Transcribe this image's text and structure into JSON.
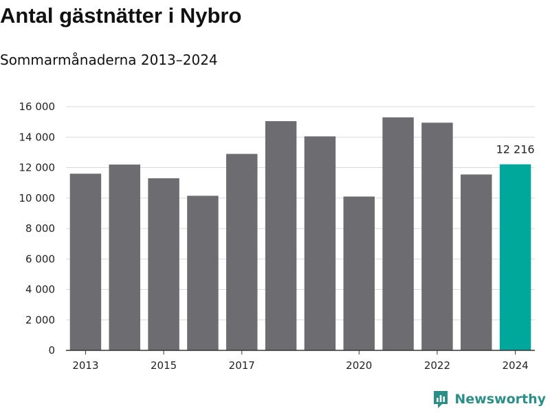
{
  "title": "Antal gästnätter i Nybro",
  "subtitle": "Sommarmånaderna 2013–2024",
  "brand": {
    "name": "Newsworthy",
    "color": "#2a8f86",
    "logo_icon": "newsworthy-logo"
  },
  "colors": {
    "bar": "#6d6c70",
    "highlight": "#00a89c",
    "grid": "#d9d9d9",
    "axis": "#333333",
    "text": "#222222"
  },
  "chart_data": {
    "type": "bar",
    "categories": [
      "2013",
      "2014",
      "2015",
      "2016",
      "2017",
      "2018",
      "2019",
      "2020",
      "2021",
      "2022",
      "2023",
      "2024"
    ],
    "values": [
      11600,
      12200,
      11300,
      10150,
      12900,
      15050,
      14050,
      10100,
      15300,
      14950,
      11550,
      12216
    ],
    "highlight_index": 11,
    "data_labels": [
      {
        "index": 11,
        "text": "12 216"
      }
    ],
    "x_tick_labels": [
      "2013",
      "2015",
      "2017",
      "2020",
      "2022",
      "2024"
    ],
    "y_ticks": [
      0,
      2000,
      4000,
      6000,
      8000,
      10000,
      12000,
      14000,
      16000
    ],
    "y_tick_labels": [
      "0",
      "2 000",
      "4 000",
      "6 000",
      "8 000",
      "10 000",
      "12 000",
      "14 000",
      "16 000"
    ],
    "ylim": [
      0,
      16000
    ],
    "grid": true,
    "legend": "none",
    "xlabel": "",
    "ylabel": ""
  }
}
